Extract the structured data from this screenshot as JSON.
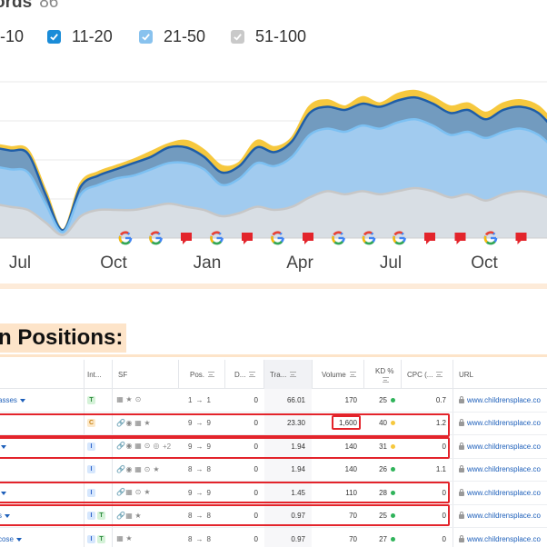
{
  "header": {
    "title": "ords",
    "count": "86"
  },
  "legend": [
    {
      "label": "-10",
      "checked": true,
      "color": "#1a8cd8"
    },
    {
      "label": "11-20",
      "checked": true,
      "color": "#1a8cd8"
    },
    {
      "label": "21-50",
      "checked": true,
      "color": "#88c2ee"
    },
    {
      "label": "51-100",
      "checked": true,
      "color": "#c9c9c9"
    }
  ],
  "chart_data": {
    "type": "area",
    "xlabels": [
      "Jul",
      "Oct",
      "Jan",
      "Apr",
      "Jul",
      "Oct"
    ],
    "series": [
      {
        "color": "#f6c83e",
        "values": [
          60,
          58,
          56,
          30,
          5,
          35,
          42,
          46,
          50,
          55,
          60,
          62,
          56,
          46,
          48,
          62,
          58,
          64,
          84,
          88,
          84,
          90,
          86,
          92,
          94,
          90,
          84,
          86,
          80,
          86,
          88,
          84,
          72
        ]
      },
      {
        "color": "#2f6fbf",
        "values": [
          58,
          56,
          54,
          28,
          5,
          33,
          40,
          44,
          48,
          52,
          58,
          58,
          52,
          42,
          46,
          58,
          55,
          62,
          80,
          84,
          82,
          86,
          84,
          88,
          90,
          86,
          80,
          82,
          76,
          82,
          84,
          80,
          68
        ]
      },
      {
        "color": "#8cc7f4",
        "values": [
          46,
          44,
          42,
          22,
          4,
          28,
          34,
          38,
          40,
          44,
          48,
          48,
          44,
          34,
          38,
          48,
          46,
          52,
          66,
          70,
          68,
          72,
          70,
          74,
          76,
          72,
          66,
          68,
          64,
          68,
          70,
          66,
          56
        ]
      },
      {
        "color": "#d0d0d0",
        "values": [
          22,
          20,
          18,
          10,
          2,
          14,
          18,
          18,
          18,
          20,
          22,
          20,
          18,
          14,
          16,
          20,
          18,
          20,
          26,
          30,
          28,
          30,
          28,
          30,
          32,
          30,
          26,
          28,
          24,
          28,
          30,
          28,
          24
        ]
      }
    ],
    "markers": [
      "G",
      "G",
      "flag",
      "G",
      "flag",
      "G",
      "flag",
      "G",
      "G",
      "G",
      "flag",
      "flag",
      "G",
      "flag"
    ]
  },
  "section": {
    "title": "n Positions:"
  },
  "table": {
    "columns": {
      "intent": "Int...",
      "sf": "SF",
      "pos": "Pos.",
      "diff": "D...",
      "traffic": "Tra...",
      "volume": "Volume",
      "kd": "KD %",
      "cpc": "CPC (...",
      "url": "URL"
    },
    "rows": [
      {
        "keyword": "asses",
        "intent": [
          "T"
        ],
        "sf_extra": "",
        "pos_from": "1",
        "pos_to": "1",
        "diff": "0",
        "traffic": "66.01",
        "volume": "170",
        "kd": "25",
        "kd_color": "#2fb35a",
        "cpc": "0.7",
        "url": "www.childrensplace.co"
      },
      {
        "keyword": "",
        "intent": [
          "C"
        ],
        "sf_extra": "",
        "pos_from": "9",
        "pos_to": "9",
        "diff": "0",
        "traffic": "23.30",
        "volume": "1,600",
        "kd": "40",
        "kd_color": "#f6c83e",
        "cpc": "1.2",
        "url": "www.childrensplace.co"
      },
      {
        "keyword": "",
        "intent": [
          "I"
        ],
        "sf_extra": "+2",
        "pos_from": "9",
        "pos_to": "9",
        "diff": "0",
        "traffic": "1.94",
        "volume": "140",
        "kd": "31",
        "kd_color": "#f6c83e",
        "cpc": "0",
        "url": "www.childrensplace.co"
      },
      {
        "keyword": "",
        "intent": [
          "I"
        ],
        "sf_extra": "",
        "pos_from": "8",
        "pos_to": "8",
        "diff": "0",
        "traffic": "1.94",
        "volume": "140",
        "kd": "26",
        "kd_color": "#2fb35a",
        "cpc": "1.1",
        "url": "www.childrensplace.co"
      },
      {
        "keyword": "",
        "intent": [
          "I"
        ],
        "sf_extra": "",
        "pos_from": "9",
        "pos_to": "9",
        "diff": "0",
        "traffic": "1.45",
        "volume": "110",
        "kd": "28",
        "kd_color": "#2fb35a",
        "cpc": "0",
        "url": "www.childrensplace.co"
      },
      {
        "keyword": "s",
        "intent": [
          "I",
          "T"
        ],
        "sf_extra": "",
        "pos_from": "8",
        "pos_to": "8",
        "diff": "0",
        "traffic": "0.97",
        "volume": "70",
        "kd": "25",
        "kd_color": "#2fb35a",
        "cpc": "0",
        "url": "www.childrensplace.co"
      },
      {
        "keyword": "cose",
        "intent": [
          "I",
          "T"
        ],
        "sf_extra": "",
        "pos_from": "8",
        "pos_to": "8",
        "diff": "0",
        "traffic": "0.97",
        "volume": "70",
        "kd": "27",
        "kd_color": "#2fb35a",
        "cpc": "0",
        "url": "www.childrensplace.co"
      }
    ]
  }
}
